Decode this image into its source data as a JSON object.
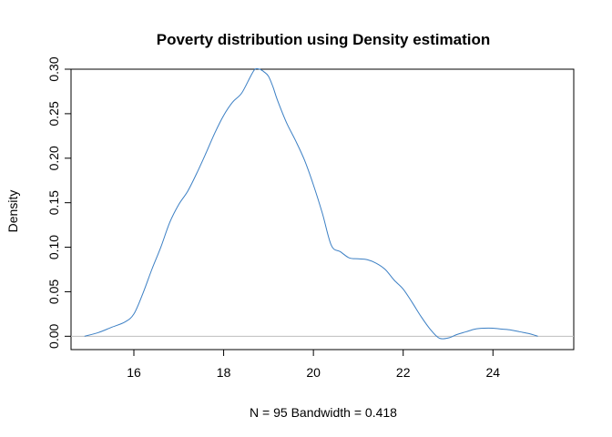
{
  "chart_data": {
    "type": "line",
    "title": "Poverty distribution using Density estimation",
    "xlabel": "N = 95   Bandwidth = 0.418",
    "ylabel": "Density",
    "xlim": [
      14.6,
      25.8
    ],
    "ylim": [
      -0.015,
      0.3
    ],
    "x_ticks": [
      16,
      18,
      20,
      22,
      24
    ],
    "x_tick_labels": [
      "16",
      "18",
      "20",
      "22",
      "24"
    ],
    "y_ticks": [
      0.0,
      0.05,
      0.1,
      0.15,
      0.2,
      0.25,
      0.3
    ],
    "y_tick_labels": [
      "0.00",
      "0.05",
      "0.10",
      "0.15",
      "0.20",
      "0.25",
      "0.30"
    ],
    "grid": false,
    "legend": "none",
    "baseline_y": 0,
    "colors": {
      "line": "#3b7fc4",
      "baseline": "#bebebe",
      "axis": "#000000"
    },
    "series": [
      {
        "x": [
          14.9,
          15.2,
          15.5,
          15.8,
          16.0,
          16.2,
          16.4,
          16.6,
          16.8,
          17.0,
          17.2,
          17.4,
          17.6,
          17.8,
          18.0,
          18.2,
          18.4,
          18.6,
          18.7,
          18.8,
          18.9,
          19.0,
          19.1,
          19.2,
          19.4,
          19.6,
          19.8,
          20.0,
          20.2,
          20.4,
          20.6,
          20.8,
          21.0,
          21.2,
          21.4,
          21.6,
          21.8,
          22.0,
          22.2,
          22.4,
          22.6,
          22.8,
          23.0,
          23.2,
          23.4,
          23.6,
          23.8,
          24.0,
          24.2,
          24.4,
          24.6,
          24.8,
          25.0
        ],
        "y": [
          0.0,
          0.004,
          0.01,
          0.016,
          0.025,
          0.048,
          0.075,
          0.1,
          0.128,
          0.148,
          0.163,
          0.183,
          0.205,
          0.228,
          0.248,
          0.263,
          0.273,
          0.292,
          0.3,
          0.3,
          0.297,
          0.292,
          0.28,
          0.265,
          0.24,
          0.22,
          0.198,
          0.17,
          0.138,
          0.102,
          0.095,
          0.088,
          0.087,
          0.086,
          0.082,
          0.075,
          0.063,
          0.053,
          0.038,
          0.022,
          0.008,
          -0.002,
          -0.002,
          0.002,
          0.005,
          0.008,
          0.009,
          0.009,
          0.008,
          0.007,
          0.005,
          0.003,
          0.0
        ]
      }
    ]
  }
}
